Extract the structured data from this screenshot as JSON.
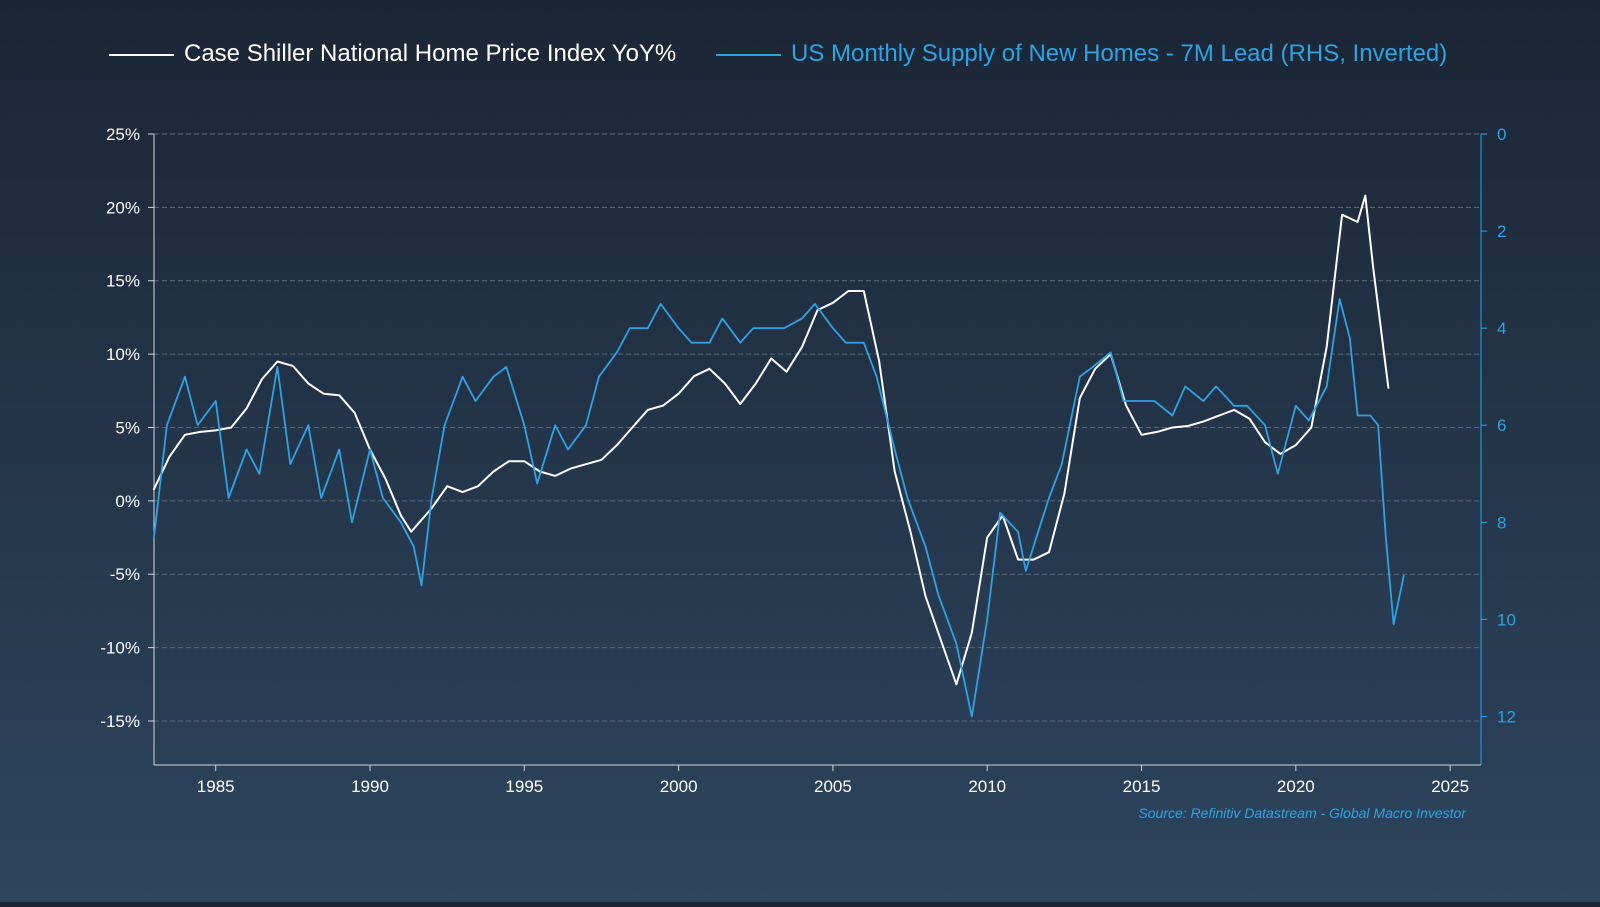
{
  "colors": {
    "white_series": "#ffffff",
    "blue_series": "#2ea3e3",
    "grid": "#5a6878",
    "axis": "#cfd6df"
  },
  "source_text": "Source: Refinitiv Datastream - Global Macro Investor",
  "chart_data": {
    "type": "line",
    "title": "",
    "legend_position": "top",
    "grid": true,
    "x_axis": {
      "type": "date",
      "range": [
        "1983-01",
        "2026-01"
      ],
      "ticks": [
        1985,
        1990,
        1995,
        2000,
        2005,
        2010,
        2015,
        2020,
        2025
      ]
    },
    "y_left": {
      "range": [
        -18,
        25
      ],
      "ticks": [
        25,
        20,
        15,
        10,
        5,
        0,
        -5,
        -10,
        -15
      ],
      "tick_labels": [
        "25%",
        "20%",
        "15%",
        "10%",
        "5%",
        "0%",
        "-5%",
        "-10%",
        "-15%"
      ]
    },
    "y_right": {
      "range": [
        0,
        13
      ],
      "inverted": true,
      "ticks": [
        0,
        2,
        4,
        6,
        8,
        10,
        12
      ],
      "tick_labels": [
        "0",
        "2",
        "4",
        "6",
        "8",
        "10",
        "12"
      ]
    },
    "series": [
      {
        "name": "Case Shiller National Home Price Index YoY%",
        "axis": "left",
        "color": "#ffffff",
        "points": [
          [
            "1983-01",
            0.8
          ],
          [
            "1983-07",
            3.0
          ],
          [
            "1984-01",
            4.5
          ],
          [
            "1984-07",
            4.7
          ],
          [
            "1985-01",
            4.8
          ],
          [
            "1985-07",
            5.0
          ],
          [
            "1986-01",
            6.3
          ],
          [
            "1986-07",
            8.3
          ],
          [
            "1987-01",
            9.5
          ],
          [
            "1987-07",
            9.2
          ],
          [
            "1988-01",
            8.0
          ],
          [
            "1988-07",
            7.3
          ],
          [
            "1989-01",
            7.2
          ],
          [
            "1989-07",
            6.0
          ],
          [
            "1990-01",
            3.5
          ],
          [
            "1990-07",
            1.5
          ],
          [
            "1991-01",
            -1.0
          ],
          [
            "1991-05",
            -2.1
          ],
          [
            "1992-01",
            -0.5
          ],
          [
            "1992-07",
            1.0
          ],
          [
            "1993-01",
            0.6
          ],
          [
            "1993-07",
            1.0
          ],
          [
            "1994-01",
            2.0
          ],
          [
            "1994-07",
            2.7
          ],
          [
            "1995-01",
            2.7
          ],
          [
            "1995-07",
            2.0
          ],
          [
            "1996-01",
            1.7
          ],
          [
            "1996-07",
            2.2
          ],
          [
            "1997-01",
            2.5
          ],
          [
            "1997-07",
            2.8
          ],
          [
            "1998-01",
            3.8
          ],
          [
            "1998-07",
            5.0
          ],
          [
            "1999-01",
            6.2
          ],
          [
            "1999-07",
            6.5
          ],
          [
            "2000-01",
            7.3
          ],
          [
            "2000-07",
            8.5
          ],
          [
            "2001-01",
            9.0
          ],
          [
            "2001-07",
            8.0
          ],
          [
            "2002-01",
            6.6
          ],
          [
            "2002-07",
            8.0
          ],
          [
            "2003-01",
            9.7
          ],
          [
            "2003-07",
            8.8
          ],
          [
            "2004-01",
            10.5
          ],
          [
            "2004-07",
            13.0
          ],
          [
            "2005-01",
            13.5
          ],
          [
            "2005-07",
            14.3
          ],
          [
            "2006-01",
            14.3
          ],
          [
            "2006-07",
            9.5
          ],
          [
            "2007-01",
            2.0
          ],
          [
            "2007-07",
            -2.0
          ],
          [
            "2008-01",
            -6.5
          ],
          [
            "2008-07",
            -9.5
          ],
          [
            "2009-01",
            -12.5
          ],
          [
            "2009-07",
            -9.0
          ],
          [
            "2010-01",
            -2.5
          ],
          [
            "2010-07",
            -1.0
          ],
          [
            "2011-01",
            -4.0
          ],
          [
            "2011-07",
            -4.0
          ],
          [
            "2012-01",
            -3.5
          ],
          [
            "2012-07",
            0.5
          ],
          [
            "2013-01",
            7.0
          ],
          [
            "2013-07",
            9.0
          ],
          [
            "2014-01",
            10.0
          ],
          [
            "2014-07",
            6.5
          ],
          [
            "2015-01",
            4.5
          ],
          [
            "2015-07",
            4.7
          ],
          [
            "2016-01",
            5.0
          ],
          [
            "2016-07",
            5.1
          ],
          [
            "2017-01",
            5.4
          ],
          [
            "2017-07",
            5.8
          ],
          [
            "2018-01",
            6.2
          ],
          [
            "2018-07",
            5.6
          ],
          [
            "2019-01",
            4.0
          ],
          [
            "2019-07",
            3.2
          ],
          [
            "2020-01",
            3.8
          ],
          [
            "2020-07",
            5.0
          ],
          [
            "2021-01",
            10.5
          ],
          [
            "2021-07",
            19.5
          ],
          [
            "2022-01",
            19.0
          ],
          [
            "2022-04",
            20.8
          ],
          [
            "2022-07",
            16.0
          ],
          [
            "2023-01",
            7.7
          ]
        ]
      },
      {
        "name": "US Monthly Supply of New Homes - 7M Lead (RHS, Inverted)",
        "axis": "right",
        "color": "#2ea3e3",
        "points": [
          [
            "1983-01",
            8.3
          ],
          [
            "1983-06",
            6.0
          ],
          [
            "1984-01",
            5.0
          ],
          [
            "1984-06",
            6.0
          ],
          [
            "1985-01",
            5.5
          ],
          [
            "1985-06",
            7.5
          ],
          [
            "1986-01",
            6.5
          ],
          [
            "1986-06",
            7.0
          ],
          [
            "1987-01",
            4.8
          ],
          [
            "1987-06",
            6.8
          ],
          [
            "1988-01",
            6.0
          ],
          [
            "1988-06",
            7.5
          ],
          [
            "1989-01",
            6.5
          ],
          [
            "1989-06",
            8.0
          ],
          [
            "1990-01",
            6.5
          ],
          [
            "1990-06",
            7.5
          ],
          [
            "1991-01",
            8.0
          ],
          [
            "1991-06",
            8.5
          ],
          [
            "1991-09",
            9.3
          ],
          [
            "1992-01",
            7.5
          ],
          [
            "1992-06",
            6.0
          ],
          [
            "1993-01",
            5.0
          ],
          [
            "1993-06",
            5.5
          ],
          [
            "1994-01",
            5.0
          ],
          [
            "1994-06",
            4.8
          ],
          [
            "1995-01",
            6.0
          ],
          [
            "1995-06",
            7.2
          ],
          [
            "1996-01",
            6.0
          ],
          [
            "1996-06",
            6.5
          ],
          [
            "1997-01",
            6.0
          ],
          [
            "1997-06",
            5.0
          ],
          [
            "1998-01",
            4.5
          ],
          [
            "1998-06",
            4.0
          ],
          [
            "1999-01",
            4.0
          ],
          [
            "1999-06",
            3.5
          ],
          [
            "2000-01",
            4.0
          ],
          [
            "2000-06",
            4.3
          ],
          [
            "2001-01",
            4.3
          ],
          [
            "2001-06",
            3.8
          ],
          [
            "2002-01",
            4.3
          ],
          [
            "2002-06",
            4.0
          ],
          [
            "2003-01",
            4.0
          ],
          [
            "2003-06",
            4.0
          ],
          [
            "2004-01",
            3.8
          ],
          [
            "2004-06",
            3.5
          ],
          [
            "2005-01",
            4.0
          ],
          [
            "2005-06",
            4.3
          ],
          [
            "2006-01",
            4.3
          ],
          [
            "2006-06",
            5.0
          ],
          [
            "2007-01",
            6.5
          ],
          [
            "2007-06",
            7.5
          ],
          [
            "2008-01",
            8.5
          ],
          [
            "2008-06",
            9.5
          ],
          [
            "2009-01",
            10.5
          ],
          [
            "2009-07",
            12.0
          ],
          [
            "2010-01",
            10.0
          ],
          [
            "2010-06",
            7.8
          ],
          [
            "2011-01",
            8.2
          ],
          [
            "2011-04",
            9.0
          ],
          [
            "2011-10",
            8.0
          ],
          [
            "2012-01",
            7.5
          ],
          [
            "2012-06",
            6.8
          ],
          [
            "2013-01",
            5.0
          ],
          [
            "2013-06",
            4.8
          ],
          [
            "2014-01",
            4.5
          ],
          [
            "2014-06",
            5.5
          ],
          [
            "2015-01",
            5.5
          ],
          [
            "2015-06",
            5.5
          ],
          [
            "2016-01",
            5.8
          ],
          [
            "2016-06",
            5.2
          ],
          [
            "2017-01",
            5.5
          ],
          [
            "2017-06",
            5.2
          ],
          [
            "2018-01",
            5.6
          ],
          [
            "2018-06",
            5.6
          ],
          [
            "2019-01",
            6.0
          ],
          [
            "2019-06",
            7.0
          ],
          [
            "2020-01",
            5.6
          ],
          [
            "2020-06",
            5.9
          ],
          [
            "2021-01",
            5.2
          ],
          [
            "2021-06",
            3.4
          ],
          [
            "2021-10",
            4.2
          ],
          [
            "2022-01",
            5.8
          ],
          [
            "2022-06",
            5.8
          ],
          [
            "2022-09",
            6.0
          ],
          [
            "2022-12",
            8.3
          ],
          [
            "2023-03",
            10.1
          ],
          [
            "2023-07",
            9.1
          ]
        ]
      }
    ]
  }
}
